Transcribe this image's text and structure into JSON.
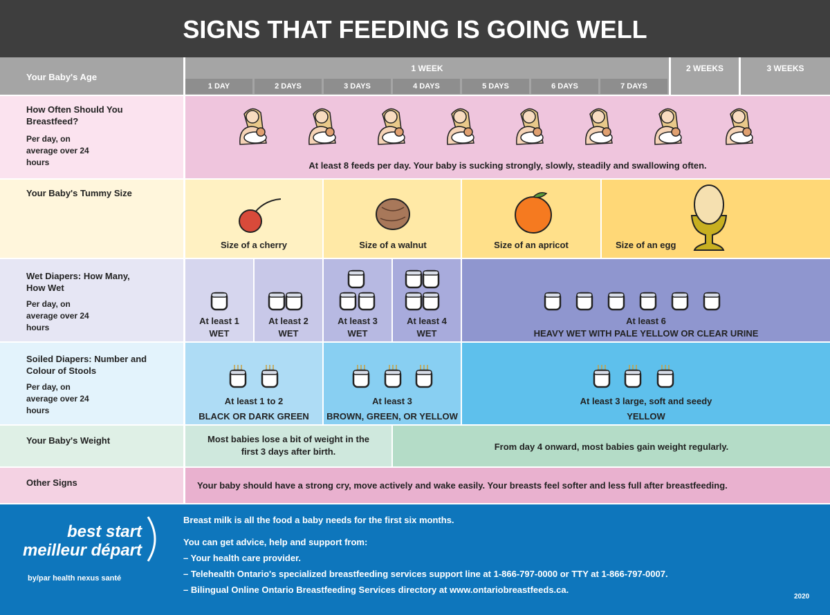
{
  "title": "SIGNS THAT FEEDING IS GOING WELL",
  "age": {
    "label": "Your Baby's Age",
    "week": "1 WEEK",
    "days": [
      "1 DAY",
      "2 DAYS",
      "3 DAYS",
      "4 DAYS",
      "5 DAYS",
      "6 DAYS",
      "7 DAYS"
    ],
    "weeks": [
      "2 WEEKS",
      "3 WEEKS"
    ]
  },
  "feeding": {
    "heading": "How Often Should You Breastfeed?",
    "sub": "Per day, on average over 24 hours",
    "text": "At least 8 feeds per day. Your baby is sucking strongly, slowly, steadily and swallowing often."
  },
  "tummy": {
    "heading": "Your Baby's Tummy Size",
    "sizes": [
      "Size of a cherry",
      "Size of a walnut",
      "Size of an apricot",
      "Size of an egg"
    ]
  },
  "wet": {
    "heading": "Wet Diapers: How Many, How Wet",
    "sub": "Per day, on average over 24 hours",
    "items": [
      {
        "count": "At least 1",
        "note": "WET"
      },
      {
        "count": "At least 2",
        "note": "WET"
      },
      {
        "count": "At least 3",
        "note": "WET"
      },
      {
        "count": "At least 4",
        "note": "WET"
      },
      {
        "count": "At least 6",
        "note": "HEAVY WET WITH PALE YELLOW OR CLEAR URINE"
      }
    ]
  },
  "soiled": {
    "heading": "Soiled Diapers: Number and Colour of Stools",
    "sub": "Per day, on average over 24 hours",
    "items": [
      {
        "count": "At least 1 to 2",
        "note": "BLACK OR DARK GREEN"
      },
      {
        "count": "At least 3",
        "note": "BROWN, GREEN, OR YELLOW"
      },
      {
        "count": "At least 3 large, soft and seedy",
        "note": "YELLOW"
      }
    ]
  },
  "weight": {
    "heading": "Your Baby's Weight",
    "items": [
      "Most babies lose a bit of weight in the first 3 days after birth.",
      "From day 4 onward, most babies gain weight regularly."
    ]
  },
  "other": {
    "heading": "Other Signs",
    "text": "Your baby should have a strong cry, move actively and wake easily. Your breasts feel softer and less full after breastfeeding."
  },
  "footer": {
    "logo": [
      "best start",
      "meilleur départ"
    ],
    "byline": "by/par health nexus santé",
    "lines": [
      "Breast milk is all the food a baby needs for the first six months.",
      "You can get advice, help and support from:",
      "– Your health care provider.",
      "– Telehealth Ontario's specialized breastfeeding services support line at 1-866-797-0000 or TTY at 1-866-797-0007.",
      "– Bilingual Online Ontario Breastfeeding Services directory at www.ontariobreastfeeds.ca."
    ],
    "year": "2020"
  }
}
